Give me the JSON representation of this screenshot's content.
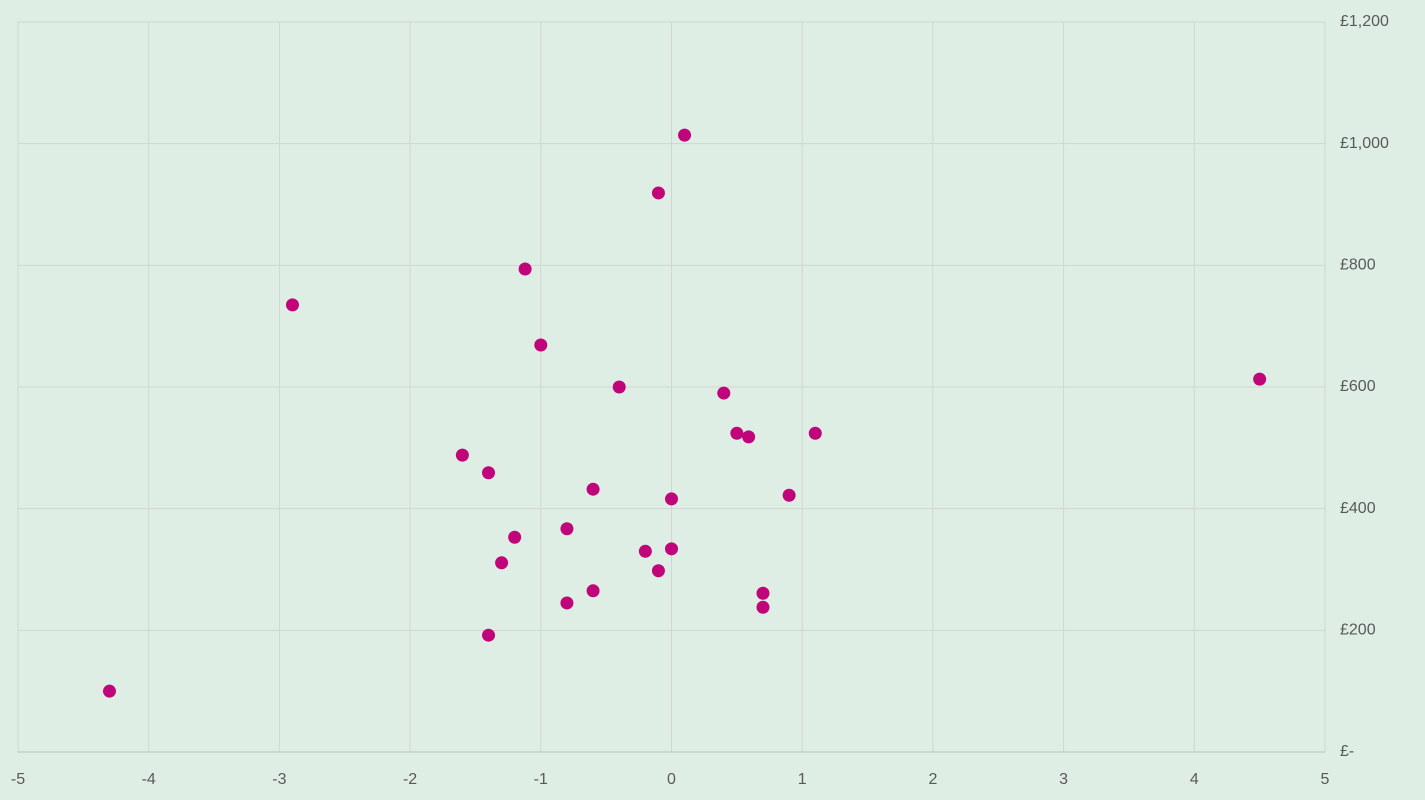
{
  "chart_data": {
    "type": "scatter",
    "x": [
      -4.3,
      -2.9,
      -1.12,
      -1.0,
      0.1,
      -0.1,
      -0.4,
      0.4,
      4.5,
      0.5,
      0.59,
      1.1,
      -1.6,
      -1.4,
      -0.6,
      0.0,
      0.9,
      -0.8,
      -1.2,
      -0.2,
      0.0,
      -1.3,
      -0.1,
      -0.6,
      0.7,
      -0.8,
      0.7,
      -1.4
    ],
    "series": [
      {
        "color": "#c0047a",
        "values": [
          100,
          735,
          794,
          669,
          1014,
          919,
          600,
          590,
          613,
          524,
          518,
          524,
          488,
          459,
          432,
          416,
          422,
          367,
          353,
          330,
          334,
          311,
          298,
          265,
          261,
          245,
          238,
          192
        ]
      }
    ],
    "xlim": [
      -5,
      5
    ],
    "xticks": [
      -5,
      -4,
      -3,
      -2,
      -1,
      0,
      1,
      2,
      3,
      4,
      5
    ],
    "ylim": [
      0,
      1200
    ],
    "yticks": [
      {
        "value": 0,
        "label": "£-"
      },
      {
        "value": 200,
        "label": "£200"
      },
      {
        "value": 400,
        "label": "£400"
      },
      {
        "value": 600,
        "label": "£600"
      },
      {
        "value": 800,
        "label": "£800"
      },
      {
        "value": 1000,
        "label": "£1,000"
      },
      {
        "value": 1200,
        "label": "£1,200"
      }
    ],
    "grid": true,
    "y_axis_side": "right"
  }
}
